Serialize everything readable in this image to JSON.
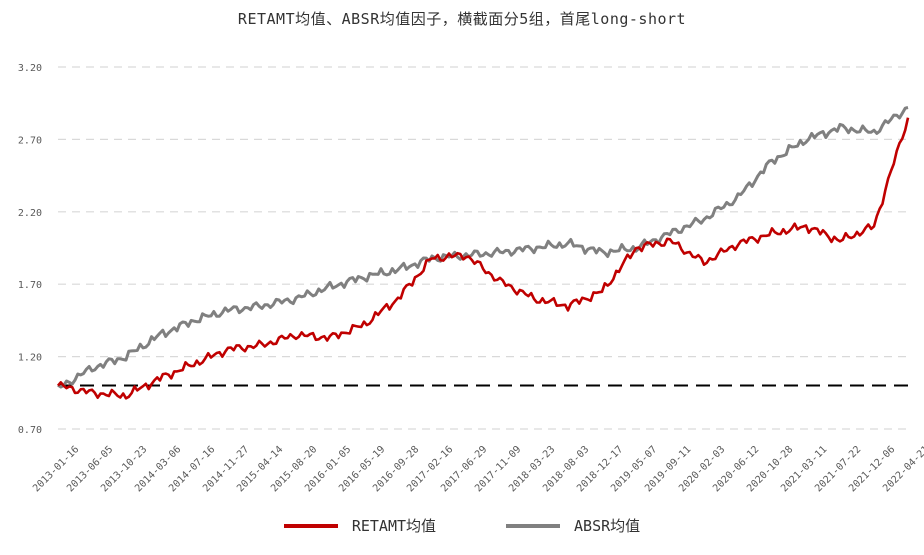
{
  "chart_data": {
    "type": "line",
    "title": "RETAMT均值、ABSR均值因子，横截面分5组，首尾long-short",
    "ylim": [
      0.7,
      3.3
    ],
    "yticks": [
      "0.70",
      "1.20",
      "1.70",
      "2.20",
      "2.70",
      "3.20"
    ],
    "grid": "horizontal dashed",
    "legend": "bottom",
    "x": [
      "2013-01-16",
      "2013-06-05",
      "2013-10-23",
      "2014-03-06",
      "2014-07-16",
      "2014-11-27",
      "2015-04-14",
      "2015-08-20",
      "2016-01-05",
      "2016-05-19",
      "2016-09-28",
      "2017-02-16",
      "2017-06-29",
      "2017-11-09",
      "2018-03-23",
      "2018-08-03",
      "2018-12-17",
      "2019-05-07",
      "2019-09-11",
      "2020-02-03",
      "2020-06-12",
      "2020-10-28",
      "2021-03-11",
      "2021-07-22",
      "2021-12-06",
      "2022-04-21"
    ],
    "series": [
      {
        "name": "RETAMT均值",
        "color": "#c00000",
        "values": [
          1.0,
          0.95,
          0.93,
          1.05,
          1.15,
          1.25,
          1.28,
          1.35,
          1.33,
          1.42,
          1.6,
          1.88,
          1.9,
          1.72,
          1.6,
          1.55,
          1.65,
          1.95,
          2.0,
          1.85,
          1.98,
          2.05,
          2.1,
          2.0,
          2.1,
          2.85
        ]
      },
      {
        "name": "ABSR均值",
        "color": "#808080",
        "values": [
          0.98,
          1.12,
          1.2,
          1.35,
          1.45,
          1.52,
          1.55,
          1.6,
          1.68,
          1.75,
          1.8,
          1.88,
          1.9,
          1.92,
          1.95,
          1.98,
          1.92,
          1.95,
          2.05,
          2.15,
          2.3,
          2.55,
          2.7,
          2.78,
          2.75,
          2.92
        ]
      }
    ],
    "reference_line": {
      "y": 1.0,
      "color": "#000000"
    }
  }
}
